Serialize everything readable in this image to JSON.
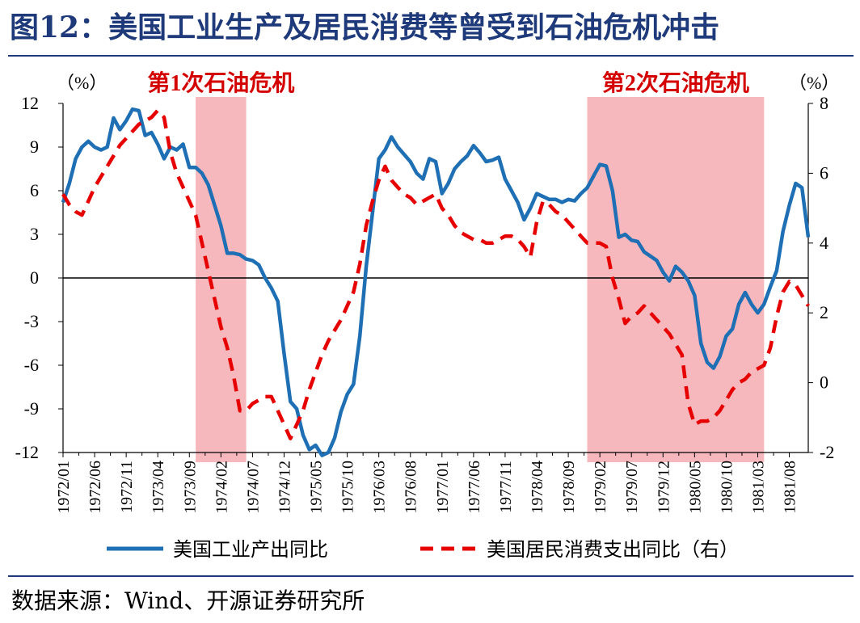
{
  "title": "图12：美国工业生产及居民消费等曾受到石油危机冲击",
  "source": "数据来源：Wind、开源证券研究所",
  "colors": {
    "title": "#1f3a7a",
    "series1": "#1f6fb5",
    "series2": "#e60000",
    "shade": "#f7b8bd",
    "annotation": "#d40000"
  },
  "chart_data": {
    "type": "line",
    "left_axis_unit": "（%）",
    "right_axis_unit": "（%）",
    "ylim_left": [
      -12,
      12
    ],
    "ylim_right": [
      -2,
      8
    ],
    "yticks_left": [
      "12",
      "9",
      "6",
      "3",
      "0",
      "-3",
      "-6",
      "-9",
      "-12"
    ],
    "yticks_right": [
      "8",
      "6",
      "4",
      "2",
      "0",
      "-2"
    ],
    "x_range": [
      "1972/01",
      "1981/11"
    ],
    "x_tick_labels": [
      "1972/01",
      "1972/06",
      "1972/11",
      "1973/04",
      "1973/09",
      "1974/02",
      "1974/07",
      "1974/12",
      "1975/05",
      "1975/10",
      "1976/03",
      "1976/08",
      "1977/01",
      "1977/06",
      "1977/11",
      "1978/04",
      "1978/09",
      "1979/02",
      "1979/07",
      "1979/12",
      "1980/05",
      "1980/10",
      "1981/03",
      "1981/08"
    ],
    "shaded_periods": [
      {
        "label": "第1次石油危机",
        "start": "1973/10",
        "end": "1974/06"
      },
      {
        "label": "第2次石油危机",
        "start": "1978/12",
        "end": "1981/04"
      }
    ],
    "series": [
      {
        "name": "美国工业产出同比",
        "axis": "left",
        "style": "solid",
        "x": [
          "1972/01",
          "1972/02",
          "1972/03",
          "1972/04",
          "1972/05",
          "1972/06",
          "1972/07",
          "1972/08",
          "1972/09",
          "1972/10",
          "1972/11",
          "1972/12",
          "1973/01",
          "1973/02",
          "1973/03",
          "1973/04",
          "1973/05",
          "1973/06",
          "1973/07",
          "1973/08",
          "1973/09",
          "1973/10",
          "1973/11",
          "1973/12",
          "1974/01",
          "1974/02",
          "1974/03",
          "1974/04",
          "1974/05",
          "1974/06",
          "1974/07",
          "1974/08",
          "1974/09",
          "1974/10",
          "1974/11",
          "1974/12",
          "1975/01",
          "1975/02",
          "1975/03",
          "1975/04",
          "1975/05",
          "1975/06",
          "1975/07",
          "1975/08",
          "1975/09",
          "1975/10",
          "1975/11",
          "1975/12",
          "1976/01",
          "1976/02",
          "1976/03",
          "1976/04",
          "1976/05",
          "1976/06",
          "1976/07",
          "1976/08",
          "1976/09",
          "1976/10",
          "1976/11",
          "1976/12",
          "1977/01",
          "1977/02",
          "1977/03",
          "1977/04",
          "1977/05",
          "1977/06",
          "1977/07",
          "1977/08",
          "1977/09",
          "1977/10",
          "1977/11",
          "1977/12",
          "1978/01",
          "1978/02",
          "1978/03",
          "1978/04",
          "1978/05",
          "1978/06",
          "1978/07",
          "1978/08",
          "1978/09",
          "1978/10",
          "1978/11",
          "1978/12",
          "1979/01",
          "1979/02",
          "1979/03",
          "1979/04",
          "1979/05",
          "1979/06",
          "1979/07",
          "1979/08",
          "1979/09",
          "1979/10",
          "1979/11",
          "1979/12",
          "1980/01",
          "1980/02",
          "1980/03",
          "1980/04",
          "1980/05",
          "1980/06",
          "1980/07",
          "1980/08",
          "1980/09",
          "1980/10",
          "1980/11",
          "1980/12",
          "1981/01",
          "1981/02",
          "1981/03",
          "1981/04",
          "1981/05",
          "1981/06",
          "1981/07",
          "1981/08",
          "1981/09",
          "1981/10",
          "1981/11"
        ],
        "values": [
          5.2,
          6.5,
          8.2,
          9.0,
          9.4,
          9.0,
          8.8,
          9.0,
          11.0,
          10.2,
          10.8,
          11.6,
          11.5,
          9.8,
          10.0,
          9.2,
          8.2,
          9.0,
          8.8,
          9.2,
          7.6,
          7.6,
          7.2,
          6.4,
          5.0,
          3.6,
          1.7,
          1.7,
          1.6,
          1.3,
          1.2,
          0.9,
          0.0,
          -0.7,
          -1.6,
          -5.2,
          -8.5,
          -9.0,
          -10.8,
          -11.8,
          -11.5,
          -12.2,
          -12.0,
          -11.0,
          -9.2,
          -8.0,
          -7.3,
          -4.0,
          0.8,
          4.5,
          8.2,
          8.8,
          9.7,
          9.0,
          8.5,
          8.0,
          7.2,
          6.8,
          8.2,
          8.0,
          5.8,
          6.5,
          7.5,
          8.0,
          8.4,
          9.1,
          8.6,
          8.0,
          8.1,
          8.3,
          6.8,
          6.0,
          5.2,
          4.0,
          4.8,
          5.8,
          5.6,
          5.4,
          5.4,
          5.2,
          5.4,
          5.3,
          5.8,
          6.2,
          7.0,
          7.8,
          7.7,
          6.0,
          2.8,
          3.0,
          2.6,
          2.5,
          1.8,
          1.5,
          1.2,
          0.4,
          -0.2,
          0.8,
          0.4,
          -0.2,
          -1.2,
          -4.5,
          -5.8,
          -6.2,
          -5.4,
          -4.0,
          -3.5,
          -1.8,
          -1.0,
          -1.8,
          -2.4,
          -1.8,
          -0.6,
          0.5,
          3.2,
          5.0,
          6.5,
          6.2,
          2.8
        ]
      },
      {
        "name": "美国居民消费支出同比（右）",
        "axis": "right",
        "style": "dashed",
        "x": [
          "1972/01",
          "1972/02",
          "1972/03",
          "1972/04",
          "1972/05",
          "1972/06",
          "1972/07",
          "1972/08",
          "1972/09",
          "1972/10",
          "1972/11",
          "1972/12",
          "1973/01",
          "1973/02",
          "1973/03",
          "1973/04",
          "1973/05",
          "1973/06",
          "1973/07",
          "1973/08",
          "1973/09",
          "1973/10",
          "1973/11",
          "1973/12",
          "1974/01",
          "1974/02",
          "1974/03",
          "1974/04",
          "1974/05",
          "1974/06",
          "1974/07",
          "1974/08",
          "1974/09",
          "1974/10",
          "1974/11",
          "1974/12",
          "1975/01",
          "1975/02",
          "1975/03",
          "1975/04",
          "1975/05",
          "1975/06",
          "1975/07",
          "1975/08",
          "1975/09",
          "1975/10",
          "1975/11",
          "1975/12",
          "1976/01",
          "1976/02",
          "1976/03",
          "1976/04",
          "1976/05",
          "1976/06",
          "1976/07",
          "1976/08",
          "1976/09",
          "1976/10",
          "1976/11",
          "1976/12",
          "1977/01",
          "1977/02",
          "1977/03",
          "1977/04",
          "1977/05",
          "1977/06",
          "1977/07",
          "1977/08",
          "1977/09",
          "1977/10",
          "1977/11",
          "1977/12",
          "1978/01",
          "1978/02",
          "1978/03",
          "1978/04",
          "1978/05",
          "1978/06",
          "1978/07",
          "1978/08",
          "1978/09",
          "1978/10",
          "1978/11",
          "1978/12",
          "1979/01",
          "1979/02",
          "1979/03",
          "1979/04",
          "1979/05",
          "1979/06",
          "1979/07",
          "1979/08",
          "1979/09",
          "1979/10",
          "1979/11",
          "1979/12",
          "1980/01",
          "1980/02",
          "1980/03",
          "1980/04",
          "1980/05",
          "1980/06",
          "1980/07",
          "1980/08",
          "1980/09",
          "1980/10",
          "1980/11",
          "1980/12",
          "1981/01",
          "1981/02",
          "1981/03",
          "1981/04",
          "1981/05",
          "1981/06",
          "1981/07",
          "1981/08",
          "1981/09",
          "1981/10",
          "1981/11"
        ],
        "values": [
          5.4,
          5.1,
          4.9,
          4.8,
          5.2,
          5.6,
          5.9,
          6.2,
          6.5,
          6.8,
          7.0,
          7.2,
          7.4,
          7.5,
          7.6,
          7.8,
          7.6,
          6.6,
          6.0,
          5.6,
          5.2,
          4.8,
          4.0,
          3.2,
          2.4,
          1.6,
          1.0,
          0.2,
          -0.8,
          -0.8,
          -0.6,
          -0.5,
          -0.4,
          -0.4,
          -0.8,
          -1.2,
          -1.6,
          -1.2,
          -0.8,
          -0.2,
          0.3,
          0.8,
          1.2,
          1.5,
          1.8,
          2.2,
          2.6,
          3.4,
          4.5,
          5.2,
          5.8,
          6.2,
          5.8,
          5.6,
          5.4,
          5.3,
          5.1,
          5.2,
          5.3,
          5.4,
          5.0,
          4.8,
          4.5,
          4.3,
          4.2,
          4.1,
          4.1,
          4.0,
          4.0,
          4.1,
          4.2,
          4.2,
          4.1,
          3.9,
          3.6,
          4.6,
          5.2,
          5.1,
          4.9,
          4.8,
          4.6,
          4.4,
          4.2,
          4.0,
          4.0,
          4.0,
          3.9,
          3.0,
          2.4,
          1.7,
          1.9,
          2.0,
          2.2,
          2.0,
          1.8,
          1.6,
          1.4,
          1.1,
          0.8,
          -0.6,
          -1.2,
          -1.1,
          -1.1,
          -1.0,
          -0.8,
          -0.5,
          -0.2,
          0.0,
          0.1,
          0.3,
          0.4,
          0.5,
          1.0,
          1.9,
          2.6,
          2.9,
          2.8,
          2.5,
          2.2
        ]
      }
    ]
  }
}
